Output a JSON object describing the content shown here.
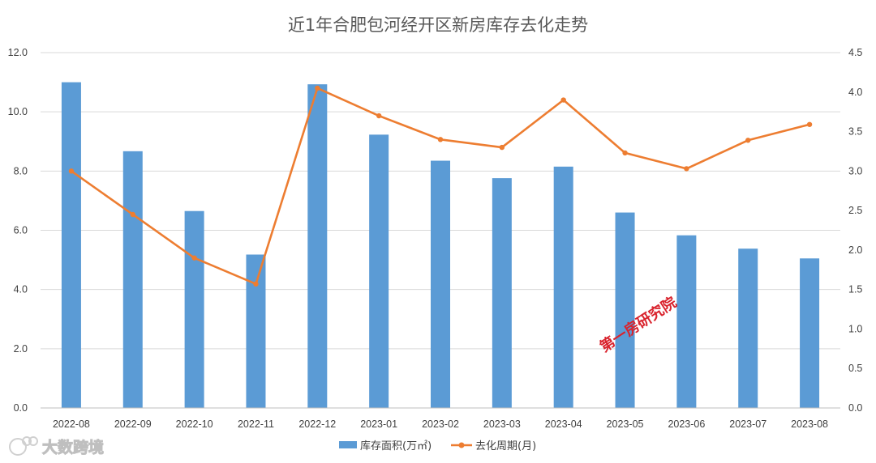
{
  "chart_data": {
    "type": "bar",
    "title": "近1年合肥包河经开区新房库存去化走势",
    "categories": [
      "2022-08",
      "2022-09",
      "2022-10",
      "2022-11",
      "2022-12",
      "2023-01",
      "2023-02",
      "2023-03",
      "2023-04",
      "2023-05",
      "2023-06",
      "2023-07",
      "2023-08"
    ],
    "series": [
      {
        "name": "库存面积(万㎡)",
        "type": "bar",
        "axis": "left",
        "color": "#5b9bd5",
        "values": [
          11.0,
          8.67,
          6.65,
          5.18,
          10.93,
          9.23,
          8.35,
          7.76,
          8.15,
          6.6,
          5.83,
          5.38,
          5.05
        ]
      },
      {
        "name": "去化周期(月)",
        "type": "line",
        "axis": "right",
        "color": "#ed7d31",
        "values": [
          3.0,
          2.45,
          1.9,
          1.57,
          4.05,
          3.7,
          3.4,
          3.3,
          3.9,
          3.23,
          3.03,
          3.39,
          3.59
        ]
      }
    ],
    "y_left": {
      "range": [
        0,
        12
      ],
      "ticks": [
        "0.0",
        "2.0",
        "4.0",
        "6.0",
        "8.0",
        "10.0",
        "12.0"
      ]
    },
    "y_right": {
      "range": [
        0,
        4.5
      ],
      "ticks": [
        "0.0",
        "0.5",
        "1.0",
        "1.5",
        "2.0",
        "2.5",
        "3.0",
        "3.5",
        "4.0",
        "4.5"
      ]
    },
    "grid": true,
    "legend_position": "bottom"
  },
  "watermark": {
    "text": "第一房研究院"
  },
  "brand": {
    "text": "大数跨境"
  }
}
